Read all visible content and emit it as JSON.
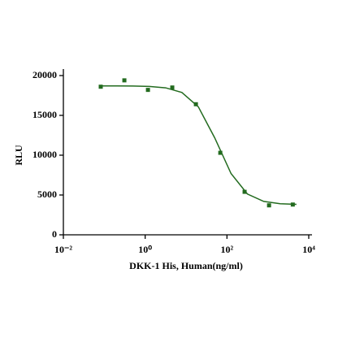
{
  "chart_data": {
    "type": "scatter",
    "xlabel": "DKK-1 His, Human(ng/ml)",
    "ylabel": "RLU",
    "xscale": "log",
    "xlim": [
      0.01,
      10000
    ],
    "ylim": [
      0,
      20000
    ],
    "xticks": [
      {
        "value": 0.01,
        "label": "10⁻²"
      },
      {
        "value": 1,
        "label": "10⁰"
      },
      {
        "value": 100,
        "label": "10²"
      },
      {
        "value": 10000,
        "label": "10⁴"
      }
    ],
    "yticks": [
      0,
      5000,
      10000,
      15000,
      20000
    ],
    "series": [
      {
        "type": "scatter",
        "color": "#236b1f",
        "x": [
          0.082,
          0.31,
          1.17,
          4.6,
          17.4,
          68.7,
          270,
          1070,
          4070
        ],
        "values": [
          18600,
          19400,
          18200,
          18500,
          16400,
          10300,
          5400,
          3700,
          3800
        ]
      },
      {
        "type": "line",
        "color": "#236b1f",
        "x": [
          0.08,
          0.2,
          0.5,
          1.26,
          3.16,
          7.9,
          20,
          50,
          126,
          316,
          794,
          2000,
          5000
        ],
        "values": [
          18700,
          18695,
          18682,
          18633,
          18462,
          17877,
          16063,
          12194,
          7690,
          5124,
          4193,
          3909,
          3830
        ]
      }
    ]
  }
}
